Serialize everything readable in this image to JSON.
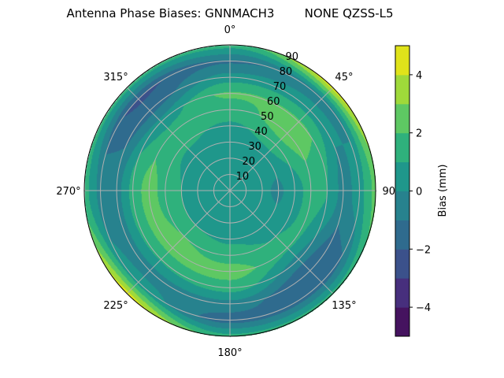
{
  "chart_data": {
    "type": "heatmap",
    "subtype": "polar-filled-contour",
    "title": "Antenna Phase Biases: GNNMACH3        NONE QZSS-L5",
    "angular_ticks": [
      "0°",
      "45°",
      "90°",
      "135°",
      "180°",
      "225°",
      "270°",
      "315°"
    ],
    "angular_tick_values": [
      0,
      45,
      90,
      135,
      180,
      225,
      270,
      315
    ],
    "angular_direction": "clockwise",
    "angular_zero": "top",
    "radial_ticks": [
      "10",
      "20",
      "30",
      "40",
      "50",
      "60",
      "70",
      "80",
      "90"
    ],
    "radial_tick_values": [
      10,
      20,
      30,
      40,
      50,
      60,
      70,
      80,
      90
    ],
    "rlim": [
      0,
      90
    ],
    "grid": true,
    "colorbar": {
      "label": "Bias (mm)",
      "ticks": [
        "−4",
        "−2",
        "0",
        "2",
        "4"
      ],
      "tick_values": [
        -4,
        -2,
        0,
        2,
        4
      ],
      "levels": [
        -5,
        -4,
        -3,
        -2,
        -1,
        0,
        1,
        2,
        3,
        4,
        5
      ],
      "colors": [
        "#45135f",
        "#472f7d",
        "#3b518b",
        "#2f6b8e",
        "#27828e",
        "#1f978b",
        "#2fb17c",
        "#5ec863",
        "#9fd93a",
        "#e0e31a"
      ],
      "colormap": "viridis",
      "placement": "right"
    },
    "grid_values": {
      "azimuths": [
        0,
        45,
        90,
        135,
        180,
        225,
        270,
        315
      ],
      "radii": [
        0,
        10,
        20,
        30,
        40,
        50,
        60,
        70,
        80,
        90
      ],
      "values": [
        [
          0.5,
          0.5,
          0.5,
          0.5,
          0.8,
          1.5,
          2.2,
          0.5,
          -1.2,
          1.5
        ],
        [
          0.5,
          0.5,
          0.5,
          0.5,
          1.5,
          2.6,
          2.2,
          0.5,
          -0.5,
          4.5
        ],
        [
          0.5,
          0.4,
          0.2,
          -0.2,
          0.5,
          1.5,
          1.0,
          -0.5,
          0.5,
          2.5
        ],
        [
          0.5,
          0.5,
          0.5,
          0.5,
          1.0,
          1.2,
          -0.5,
          -2.0,
          -1.5,
          1.5
        ],
        [
          0.5,
          0.5,
          0.5,
          0.8,
          1.5,
          2.5,
          1.5,
          -0.5,
          -1.5,
          1.5
        ],
        [
          0.5,
          0.5,
          0.5,
          1.0,
          2.0,
          2.5,
          1.2,
          -0.5,
          0.5,
          4.5
        ],
        [
          0.5,
          0.5,
          0.5,
          1.0,
          1.5,
          2.5,
          1.5,
          -0.5,
          -0.5,
          1.5
        ],
        [
          0.5,
          0.5,
          0.5,
          0.6,
          1.2,
          1.5,
          0.5,
          -1.5,
          -2.2,
          1.5
        ]
      ]
    }
  }
}
